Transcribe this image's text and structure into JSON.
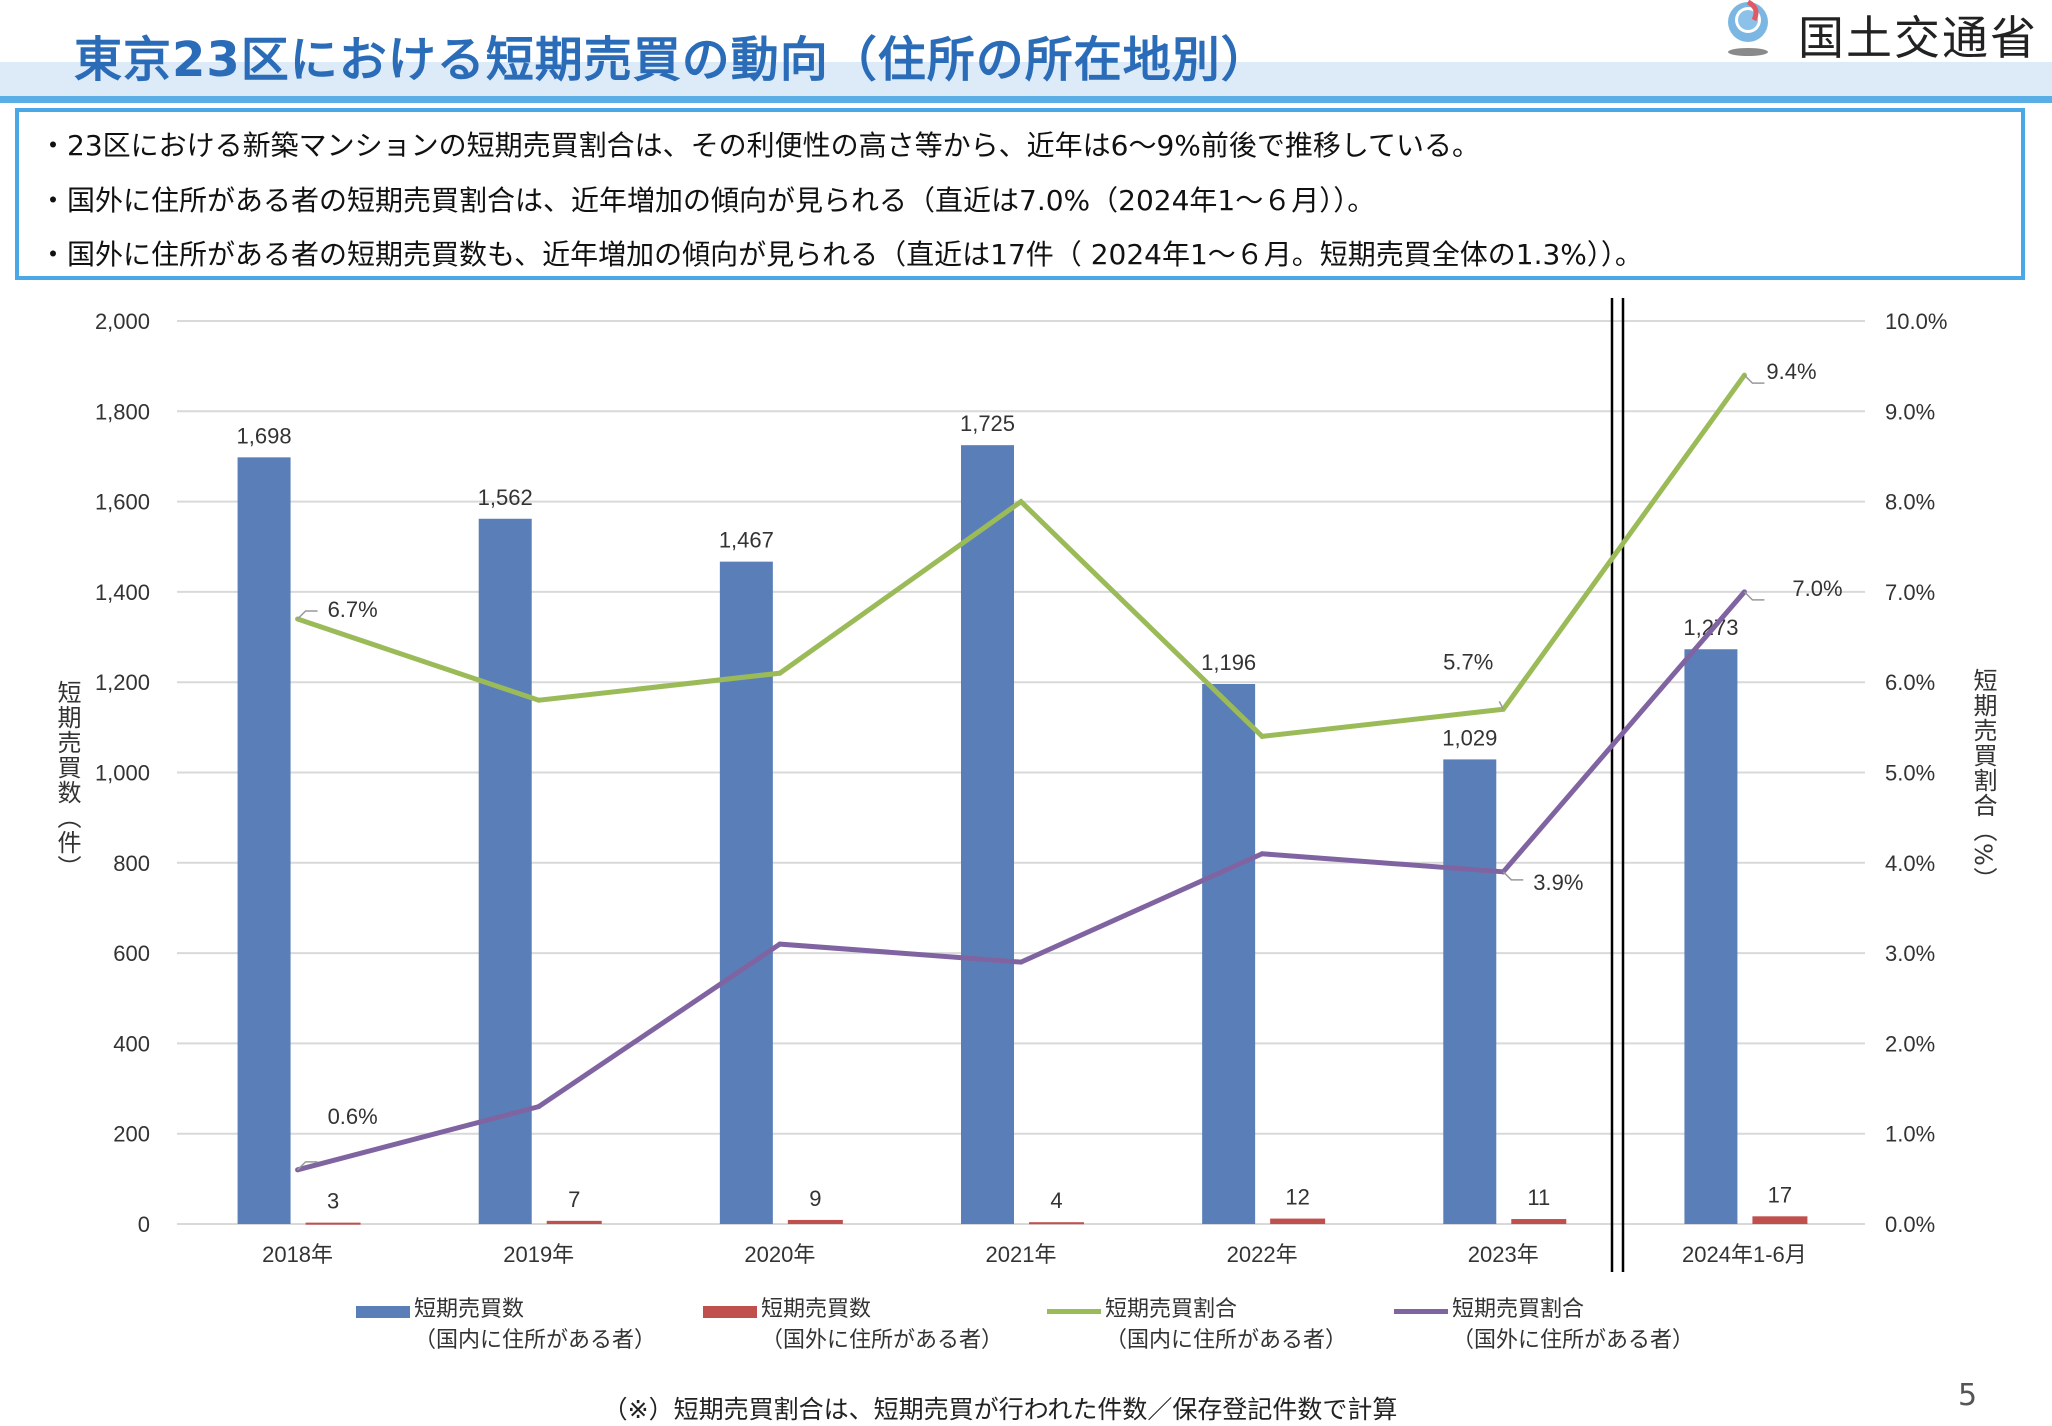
{
  "header": {
    "title": "東京23区における短期売買の動向（住所の所在地別）",
    "logo_text": "国土交通省"
  },
  "summary": {
    "lines": [
      "・23区における新築マンションの短期売買割合は、その利便性の高さ等から、近年は6～9%前後で推移している。",
      "・国外に住所がある者の短期売買割合は、近年増加の傾向が見られる（直近は7.0%（2024年1～６月））。",
      "・国外に住所がある者の短期売買数も、近年増加の傾向が見られる（直近は17件（ 2024年1～６月。短期売買全体の1.3%））。"
    ]
  },
  "chart_data": {
    "type": "bar+line",
    "categories": [
      "2018年",
      "2019年",
      "2020年",
      "2021年",
      "2022年",
      "2023年",
      "2024年1-6月"
    ],
    "ylabel": "短期売買数（件）",
    "y2label": "短期売買割合（%）",
    "ylim": [
      0,
      2000
    ],
    "y2lim": [
      0,
      10
    ],
    "yticks": [
      "0",
      "200",
      "400",
      "600",
      "800",
      "1,000",
      "1,200",
      "1,400",
      "1,600",
      "1,800",
      "2,000"
    ],
    "y2ticks": [
      "0.0%",
      "1.0%",
      "2.0%",
      "3.0%",
      "4.0%",
      "5.0%",
      "6.0%",
      "7.0%",
      "8.0%",
      "9.0%",
      "10.0%"
    ],
    "grid": true,
    "legend_position": "bottom",
    "series": [
      {
        "name": "短期売買数",
        "name_sub": "（国内に住所がある者）",
        "type": "bar",
        "axis": "left",
        "color": "#5a7fb8",
        "values": [
          1698,
          1562,
          1467,
          1725,
          1196,
          1029,
          1273
        ],
        "labels": [
          "1,698",
          "1,562",
          "1,467",
          "1,725",
          "1,196",
          "1,029",
          "1,273"
        ]
      },
      {
        "name": "短期売買数",
        "name_sub": "（国外に住所がある者）",
        "type": "bar",
        "axis": "left",
        "color": "#c0504d",
        "values": [
          3,
          7,
          9,
          4,
          12,
          11,
          17
        ],
        "labels": [
          "3",
          "7",
          "9",
          "4",
          "12",
          "11",
          "17"
        ]
      },
      {
        "name": "短期売買割合",
        "name_sub": "（国内に住所がある者）",
        "type": "line",
        "axis": "right",
        "color": "#9bbb59",
        "values": [
          6.7,
          5.8,
          6.1,
          8.0,
          5.4,
          5.7,
          9.4
        ],
        "labels": [
          "6.7%",
          "",
          "",
          "",
          "",
          "5.7%",
          "9.4%"
        ]
      },
      {
        "name": "短期売買割合",
        "name_sub": "（国外に住所がある者）",
        "type": "line",
        "axis": "right",
        "color": "#8064a2",
        "values": [
          0.6,
          1.3,
          3.1,
          2.9,
          4.1,
          3.9,
          7.0
        ],
        "labels": [
          "0.6%",
          "",
          "",
          "",
          "",
          "3.9%",
          "7.0%"
        ]
      }
    ],
    "separator_before_category": "2024年1-6月"
  },
  "footnote": "（※）短期売買割合は、短期売買が行われた件数／保存登記件数で計算",
  "page_number": "5"
}
